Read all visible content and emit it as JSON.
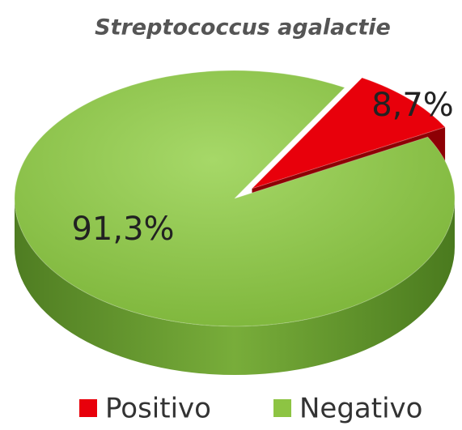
{
  "chart_data": {
    "type": "pie",
    "title": "Streptococcus agalactie",
    "categories": [
      "Positivo",
      "Negativo"
    ],
    "values": [
      8.7,
      91.3
    ],
    "value_labels": [
      "8,7%",
      "91,3%"
    ],
    "colors": [
      "#e8000b",
      "#8dc443"
    ],
    "legend": "bottom"
  }
}
